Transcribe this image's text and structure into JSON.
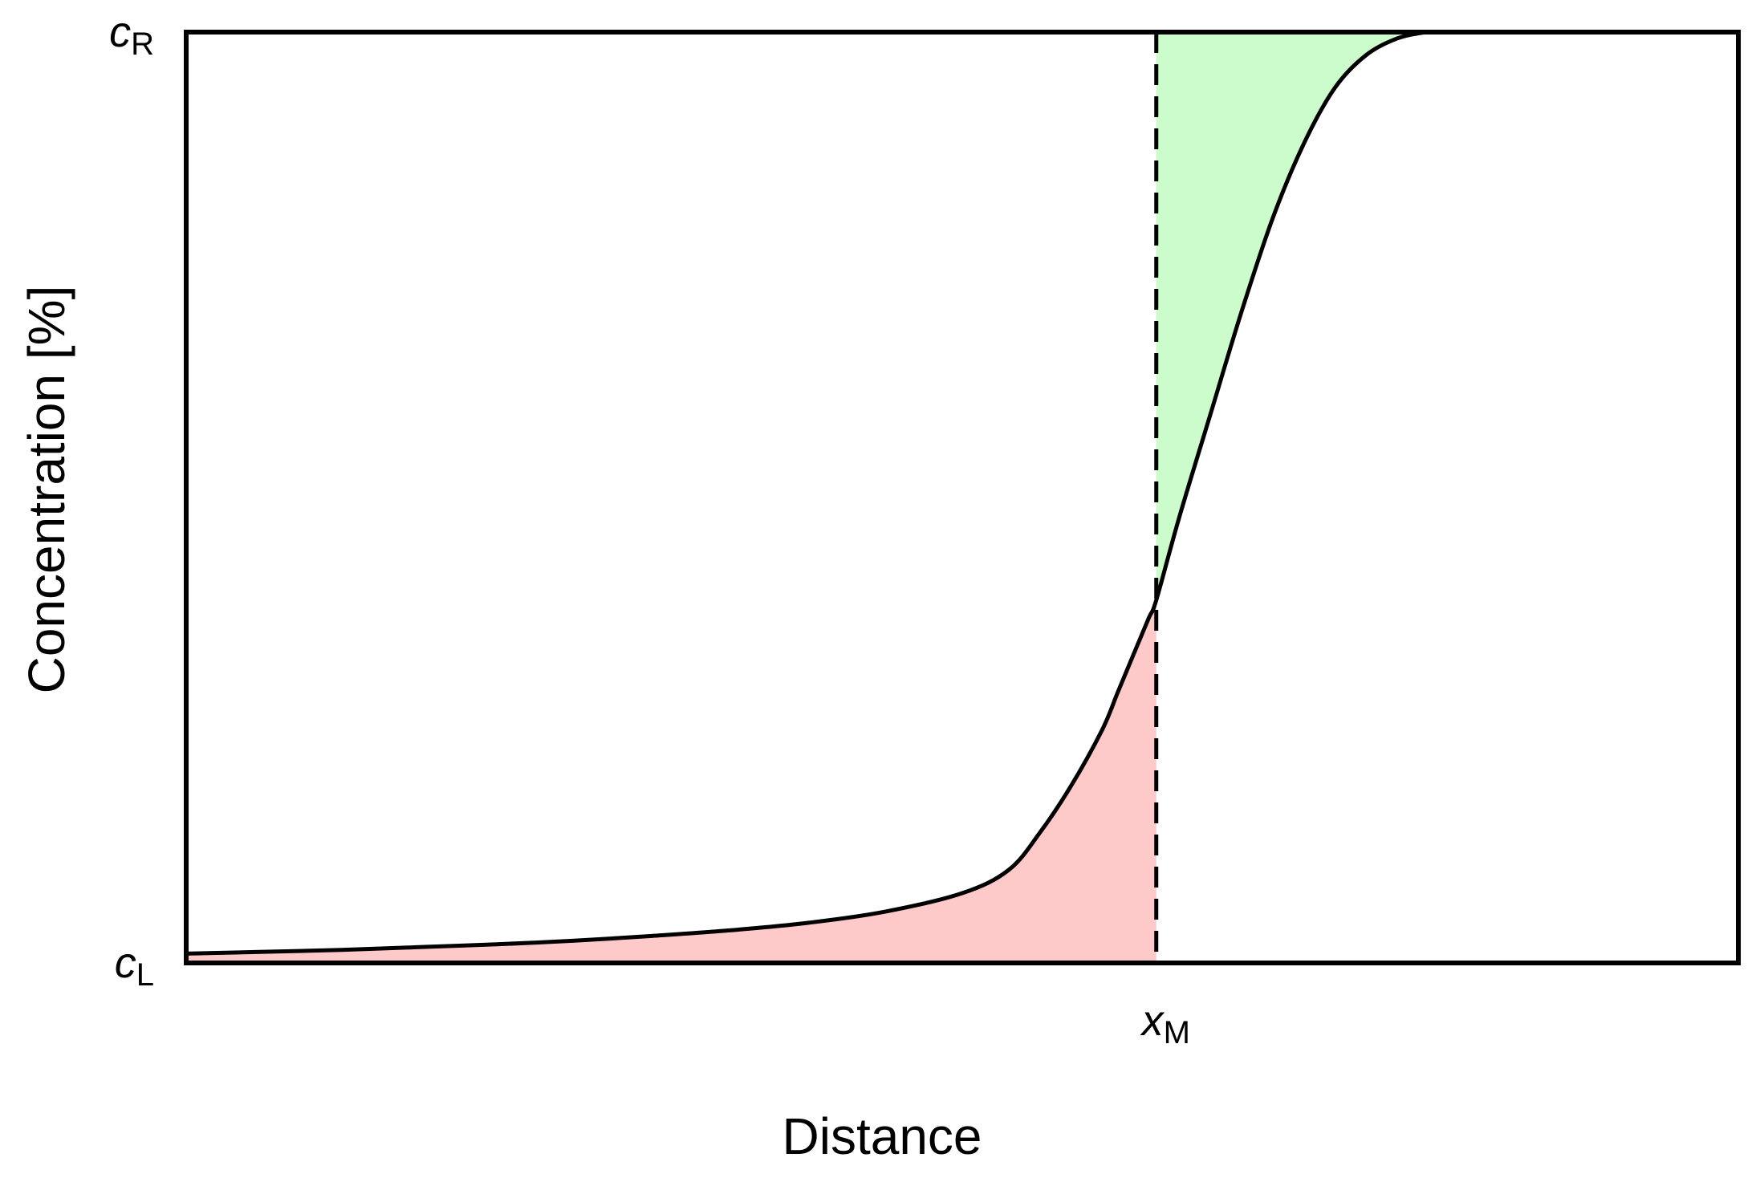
{
  "chart_data": {
    "type": "line",
    "title": "",
    "xlabel": "Distance",
    "ylabel": "Concentration [%]",
    "y_ticks": [
      {
        "main": "c",
        "sub": "L",
        "value": 0
      },
      {
        "main": "c",
        "sub": "R",
        "value": 1
      }
    ],
    "x_ticks": [
      {
        "main": "x",
        "sub": "M",
        "value": 0.625
      }
    ],
    "xlim": [
      0,
      1
    ],
    "ylim": [
      0,
      1
    ],
    "grid": false,
    "legend": "none",
    "x": [
      0.0,
      0.05,
      0.1,
      0.15,
      0.2,
      0.25,
      0.3,
      0.35,
      0.4,
      0.45,
      0.5,
      0.53,
      0.55,
      0.57,
      0.59,
      0.6,
      0.61,
      0.62,
      0.625,
      0.64,
      0.66,
      0.68,
      0.7,
      0.72,
      0.74,
      0.76,
      0.78,
      0.8,
      0.82,
      0.84,
      0.86,
      0.88,
      0.9,
      0.95,
      1.0
    ],
    "y": [
      0.01,
      0.012,
      0.014,
      0.017,
      0.02,
      0.024,
      0.029,
      0.035,
      0.043,
      0.055,
      0.075,
      0.1,
      0.14,
      0.19,
      0.25,
      0.29,
      0.33,
      0.37,
      0.39,
      0.48,
      0.59,
      0.7,
      0.8,
      0.88,
      0.94,
      0.975,
      0.993,
      1.0,
      1.0,
      1.0,
      1.0,
      1.0,
      1.0,
      1.0,
      1.0
    ],
    "areas": [
      {
        "name": "left-area",
        "from_x": 0.0,
        "to_x": 0.625,
        "between": "curve-and-cL",
        "color": "#FDC9C9"
      },
      {
        "name": "right-area",
        "from_x": 0.625,
        "to_x": 0.8,
        "between": "curve-and-cR",
        "color": "#CCFCCC"
      }
    ],
    "line_color": "#000000"
  }
}
